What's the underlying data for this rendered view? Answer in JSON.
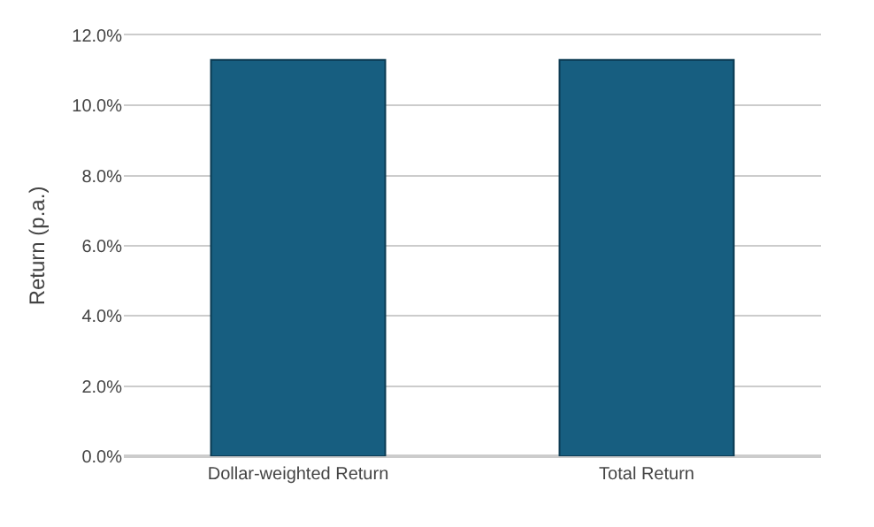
{
  "chart_data": {
    "type": "bar",
    "ylabel": "Return (p.a.)",
    "categories": [
      "Dollar-weighted Return",
      "Total Return"
    ],
    "values": [
      11.3,
      11.3
    ],
    "color": "#175e80",
    "ylim": [
      0,
      12
    ],
    "yticks": [
      {
        "value": 0,
        "label": "0.0%"
      },
      {
        "value": 2,
        "label": "2.0%"
      },
      {
        "value": 4,
        "label": "4.0%"
      },
      {
        "value": 6,
        "label": "6.0%"
      },
      {
        "value": 8,
        "label": "8.0%"
      },
      {
        "value": 10,
        "label": "10.0%"
      },
      {
        "value": 12,
        "label": "12.0%"
      }
    ],
    "grid": "y"
  }
}
